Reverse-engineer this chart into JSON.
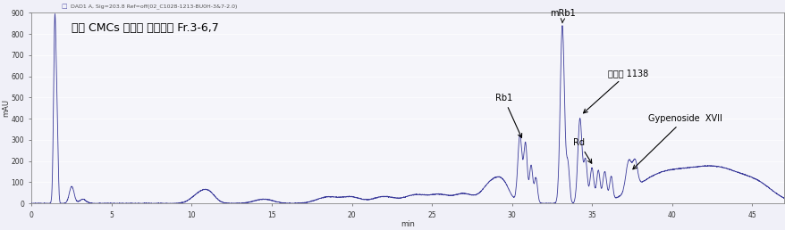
{
  "title": "산삼 CMCs 배양액 활성분획 Fr.3-6,7",
  "subtitle": "DAD1 A, Sig=203.8 Ref=off(02_C1028-1213-BU0H-3&7-2.0)",
  "ylabel": "mAU",
  "xlabel": "min",
  "xmin": 0,
  "xmax": 47,
  "ymin": 0,
  "ymax": 900,
  "yticks": [
    0,
    100,
    200,
    300,
    400,
    500,
    600,
    700,
    800,
    900
  ],
  "xticks": [
    0,
    5,
    10,
    15,
    20,
    25,
    30,
    35,
    40,
    45
  ],
  "line_color": "#3a3a9a",
  "background_color": "#f0f0f8",
  "plot_bg_color": "#f5f5fa",
  "border_color": "#aaaacc"
}
